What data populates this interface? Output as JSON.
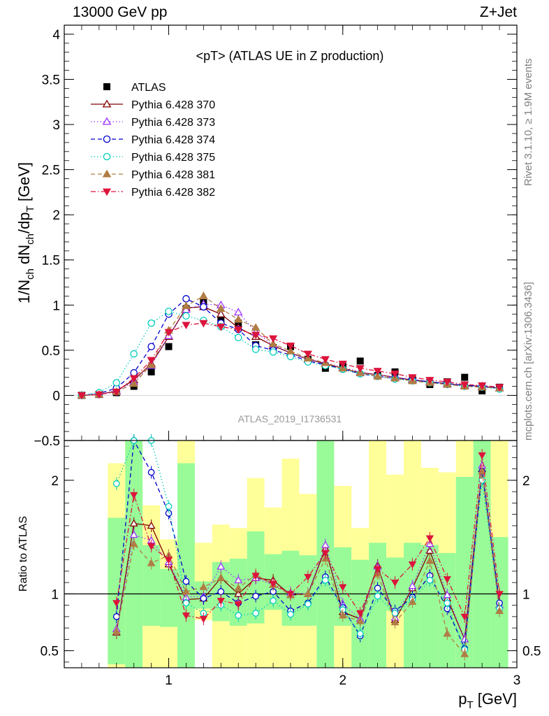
{
  "header": {
    "left": "13000 GeV pp",
    "right": "Z+Jet"
  },
  "side_labels": {
    "rivet": "Rivet 3.1.10, ≥ 1.9M events",
    "mcplots": "mcplots.cern.ch [arXiv:1306.3436]"
  },
  "chart_data": [
    {
      "type": "line",
      "title": "<pT> (ATLAS UE in Z production)",
      "watermark": "ATLAS_2019_I1736531",
      "ylabel": "1/N_ch dN_ch/dp_T [GeV]",
      "xlim": [
        0.4,
        3.0
      ],
      "ylim": [
        -0.5,
        4.1
      ],
      "yticks": [
        -0.5,
        0,
        0.5,
        1,
        1.5,
        2,
        2.5,
        3,
        3.5,
        4
      ],
      "ytick_labels": [
        "−0.5",
        "0",
        "0.5",
        "1",
        "1.5",
        "2",
        "2.5",
        "3",
        "3.5",
        "4"
      ],
      "x": [
        0.5,
        0.6,
        0.7,
        0.8,
        0.9,
        1.0,
        1.1,
        1.2,
        1.3,
        1.4,
        1.5,
        1.6,
        1.7,
        1.8,
        1.9,
        2.0,
        2.1,
        2.2,
        2.3,
        2.4,
        2.5,
        2.6,
        2.7,
        2.8,
        2.9
      ],
      "legend_position": "top-left",
      "series": [
        {
          "name": "ATLAS",
          "color": "#000000",
          "marker": "square-filled",
          "dash": "none",
          "values": [
            0.0,
            0.01,
            0.03,
            0.1,
            0.26,
            0.54,
            0.96,
            1.04,
            0.84,
            0.8,
            0.56,
            0.53,
            0.54,
            0.4,
            0.3,
            0.33,
            0.38,
            0.22,
            0.26,
            0.19,
            0.12,
            0.15,
            0.2,
            0.05,
            0.09
          ]
        },
        {
          "name": "Pythia 6.428 370",
          "color": "#800000",
          "marker": "triangle-open",
          "dash": "solid",
          "values": [
            0.0,
            0.01,
            0.05,
            0.17,
            0.35,
            0.65,
            0.97,
            0.98,
            0.9,
            0.75,
            0.65,
            0.55,
            0.47,
            0.4,
            0.35,
            0.3,
            0.25,
            0.23,
            0.2,
            0.17,
            0.15,
            0.13,
            0.11,
            0.1,
            0.08
          ]
        },
        {
          "name": "Pythia 6.428 373",
          "color": "#9b30ff",
          "marker": "triangle-open",
          "dash": "dotted",
          "values": [
            0.0,
            0.01,
            0.05,
            0.15,
            0.33,
            0.66,
            0.95,
            1.01,
            1.0,
            0.92,
            0.7,
            0.56,
            0.47,
            0.4,
            0.36,
            0.31,
            0.26,
            0.23,
            0.2,
            0.18,
            0.15,
            0.13,
            0.11,
            0.1,
            0.08
          ]
        },
        {
          "name": "Pythia 6.428 374",
          "color": "#0000cc",
          "marker": "circle-open",
          "dash": "dashed",
          "values": [
            0.0,
            0.02,
            0.08,
            0.25,
            0.54,
            0.9,
            1.07,
            0.98,
            0.8,
            0.73,
            0.55,
            0.5,
            0.45,
            0.38,
            0.34,
            0.29,
            0.24,
            0.21,
            0.19,
            0.17,
            0.15,
            0.13,
            0.11,
            0.1,
            0.08
          ]
        },
        {
          "name": "Pythia 6.428 375",
          "color": "#00ccbb",
          "marker": "circle-open",
          "dash": "dotted",
          "values": [
            0.0,
            0.03,
            0.14,
            0.46,
            0.8,
            0.93,
            0.88,
            0.83,
            0.76,
            0.64,
            0.51,
            0.48,
            0.43,
            0.37,
            0.33,
            0.29,
            0.24,
            0.21,
            0.18,
            0.16,
            0.14,
            0.12,
            0.1,
            0.09,
            0.07
          ]
        },
        {
          "name": "Pythia 6.428 381",
          "color": "#b07d45",
          "marker": "triangle-filled",
          "dash": "dashed",
          "values": [
            0.0,
            0.01,
            0.04,
            0.13,
            0.34,
            0.72,
            0.99,
            1.1,
            0.96,
            0.84,
            0.75,
            0.57,
            0.49,
            0.41,
            0.36,
            0.3,
            0.25,
            0.21,
            0.19,
            0.16,
            0.14,
            0.12,
            0.1,
            0.09,
            0.08
          ]
        },
        {
          "name": "Pythia 6.428 382",
          "color": "#dc143c",
          "marker": "triangle-down-filled",
          "dash": "dashdot",
          "values": [
            0.0,
            0.01,
            0.04,
            0.19,
            0.39,
            0.7,
            0.78,
            0.8,
            0.76,
            0.73,
            0.67,
            0.63,
            0.55,
            0.46,
            0.4,
            0.35,
            0.3,
            0.27,
            0.24,
            0.2,
            0.17,
            0.15,
            0.12,
            0.11,
            0.09
          ]
        }
      ]
    },
    {
      "type": "line",
      "ylabel": "Ratio to ATLAS",
      "xlabel": "p_T [GeV]",
      "xlim": [
        0.4,
        3.0
      ],
      "ylim": [
        0.35,
        2.35
      ],
      "xticks": [
        1,
        2,
        3
      ],
      "xtick_labels": [
        "1",
        "2",
        "3"
      ],
      "yticks": [
        0.5,
        1,
        2
      ],
      "ytick_labels": [
        "0.5",
        "1",
        "2"
      ],
      "reference_line": 1,
      "x": [
        0.7,
        0.8,
        0.9,
        1.0,
        1.1,
        1.2,
        1.3,
        1.4,
        1.5,
        1.6,
        1.7,
        1.8,
        1.9,
        2.0,
        2.1,
        2.2,
        2.3,
        2.4,
        2.5,
        2.6,
        2.7,
        2.8,
        2.9
      ],
      "band_colors": {
        "inner": "#98fb98",
        "outer": "#ffff99"
      },
      "bands": {
        "x_edges": [
          0.65,
          0.75,
          0.85,
          0.95,
          1.05,
          1.15,
          1.25,
          1.35,
          1.45,
          1.55,
          1.65,
          1.75,
          1.85,
          1.95,
          2.05,
          2.15,
          2.25,
          2.35,
          2.45,
          2.55,
          2.65,
          2.75,
          2.85,
          2.95
        ],
        "inner_low": [
          0.38,
          0.35,
          0.72,
          0.71,
          0.35,
          0.87,
          0.76,
          0.72,
          0.74,
          0.86,
          0.72,
          0.72,
          0.35,
          0.72,
          0.35,
          0.35,
          0.85,
          0.35,
          0.35,
          0.35,
          0.35,
          0.35,
          0.35
        ],
        "inner_high": [
          1.67,
          2.35,
          1.43,
          1.22,
          2.15,
          1.11,
          1.28,
          1.31,
          1.55,
          1.35,
          1.38,
          1.34,
          2.35,
          1.41,
          1.3,
          1.45,
          1.32,
          1.45,
          1.43,
          1.36,
          2.03,
          2.35,
          1.5
        ],
        "outer_low": [
          0.35,
          0.35,
          0.35,
          0.35,
          0.35,
          0.77,
          0.35,
          0.35,
          0.35,
          0.35,
          0.35,
          0.35,
          0.35,
          0.35,
          0.35,
          0.35,
          0.35,
          0.35,
          0.35,
          0.35,
          0.35,
          0.35,
          0.35
        ],
        "outer_high": [
          2.15,
          2.35,
          1.78,
          1.48,
          2.35,
          1.45,
          1.61,
          1.58,
          2.02,
          1.76,
          2.19,
          1.88,
          2.35,
          1.95,
          1.58,
          2.35,
          2.05,
          2.35,
          2.11,
          2.07,
          2.35,
          2.35,
          2.35
        ]
      },
      "series": [
        {
          "name": "Pythia 6.428 370",
          "values": [
            0.66,
            1.62,
            1.6,
            1.26,
            0.95,
            0.96,
            1.14,
            1.0,
            1.14,
            1.12,
            0.99,
            1.0,
            1.4,
            0.84,
            0.78,
            1.25,
            0.77,
            1.05,
            1.38,
            0.96,
            0.6,
            2.1,
            0.9
          ]
        },
        {
          "name": "Pythia 6.428 373",
          "values": [
            0.69,
            1.52,
            1.47,
            1.28,
            0.97,
            0.98,
            1.24,
            1.12,
            1.14,
            1.08,
            1.01,
            1.0,
            1.43,
            0.91,
            0.78,
            1.24,
            0.79,
            1.07,
            1.44,
            0.99,
            0.6,
            2.13,
            0.9
          ]
        },
        {
          "name": "Pythia 6.428 374",
          "values": [
            0.8,
            2.35,
            2.07,
            1.71,
            1.11,
            0.96,
            1.02,
            0.92,
            0.98,
            1.02,
            0.85,
            0.92,
            1.15,
            0.88,
            0.63,
            1.05,
            0.85,
            0.97,
            1.16,
            0.87,
            0.52,
            2.08,
            0.92
          ]
        },
        {
          "name": "Pythia 6.428 375",
          "values": [
            1.97,
            2.35,
            2.35,
            1.77,
            0.92,
            0.83,
            0.9,
            0.81,
            0.83,
            0.94,
            0.82,
            0.91,
            1.12,
            0.86,
            0.65,
            0.98,
            0.83,
            0.95,
            1.12,
            0.92,
            0.51,
            2.0,
            0.87
          ]
        },
        {
          "name": "Pythia 6.428 381",
          "values": [
            0.67,
            1.44,
            1.27,
            1.34,
            1.02,
            1.06,
            1.14,
            1.05,
            1.17,
            1.08,
            0.99,
            1.0,
            1.31,
            0.81,
            0.76,
            1.18,
            0.75,
            0.93,
            1.29,
            0.65,
            0.47,
            2.08,
            0.85
          ]
        },
        {
          "name": "Pythia 6.428 382",
          "values": [
            0.92,
            1.87,
            1.42,
            1.3,
            0.81,
            0.78,
            0.94,
            0.91,
            1.16,
            1.09,
            1.0,
            1.15,
            1.36,
            1.06,
            0.83,
            1.22,
            1.1,
            1.26,
            1.49,
            1.13,
            0.8,
            2.22,
            1.0
          ]
        }
      ]
    }
  ]
}
